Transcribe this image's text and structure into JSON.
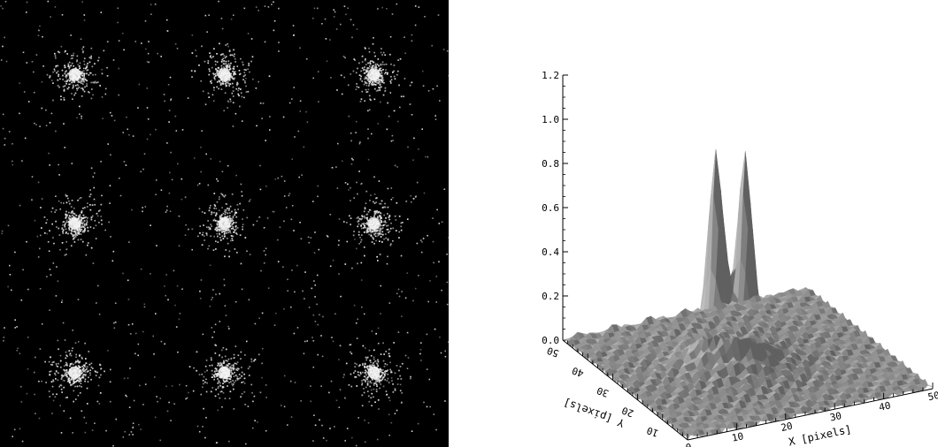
{
  "chart_data": [
    {
      "type": "heatmap",
      "grid": {
        "rows": 3,
        "columns": 3
      },
      "sources": [
        {
          "row": 1,
          "col": 1
        },
        {
          "row": 1,
          "col": 2
        },
        {
          "row": 1,
          "col": 3
        },
        {
          "row": 2,
          "col": 1
        },
        {
          "row": 2,
          "col": 2
        },
        {
          "row": 2,
          "col": 3
        },
        {
          "row": 3,
          "col": 1
        },
        {
          "row": 3,
          "col": 2
        },
        {
          "row": 3,
          "col": 3
        }
      ],
      "background_color": "#000000",
      "point_color": "#e8e8e8"
    },
    {
      "type": "surface",
      "zlim": [
        0.0,
        1.2
      ],
      "z_ticks": [
        "0.0",
        "0.2",
        "0.4",
        "0.6",
        "0.8",
        "1.0",
        "1.2"
      ],
      "xlim": [
        0,
        50
      ],
      "x_ticks": [
        "0",
        "10",
        "20",
        "30",
        "40",
        "50"
      ],
      "xlabel": "X [pixels]",
      "ylim": [
        0,
        50
      ],
      "y_ticks": [
        "0",
        "10",
        "20",
        "30",
        "40",
        "50"
      ],
      "ylabel": "Y [pixels]",
      "peaks": [
        {
          "x": 20,
          "y": 28,
          "height": 0.9
        },
        {
          "x": 24,
          "y": 24,
          "height": 0.92
        }
      ],
      "surface_color": "#9a9a9a"
    }
  ]
}
